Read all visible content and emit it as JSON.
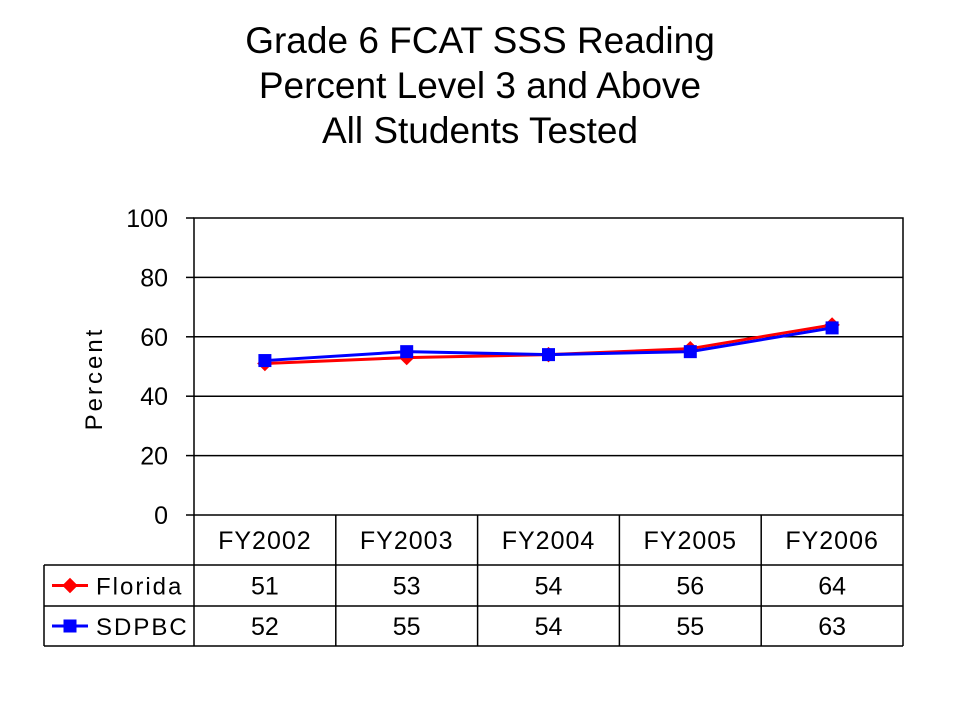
{
  "chart_data": {
    "type": "line",
    "title_lines": [
      "Grade 6 FCAT SSS Reading",
      "Percent Level 3 and Above",
      "All Students Tested"
    ],
    "xlabel": "",
    "ylabel": "Percent",
    "categories": [
      "FY2002",
      "FY2003",
      "FY2004",
      "FY2005",
      "FY2006"
    ],
    "ylim": [
      0,
      100
    ],
    "yticks": [
      0,
      20,
      40,
      60,
      80,
      100
    ],
    "grid": true,
    "series": [
      {
        "name": "Florida",
        "values": [
          51,
          53,
          54,
          56,
          64
        ],
        "color": "#ff0000",
        "marker": "diamond"
      },
      {
        "name": "SDPBC",
        "values": [
          52,
          55,
          54,
          55,
          63
        ],
        "color": "#0000ff",
        "marker": "square"
      }
    ],
    "data_table": true
  }
}
